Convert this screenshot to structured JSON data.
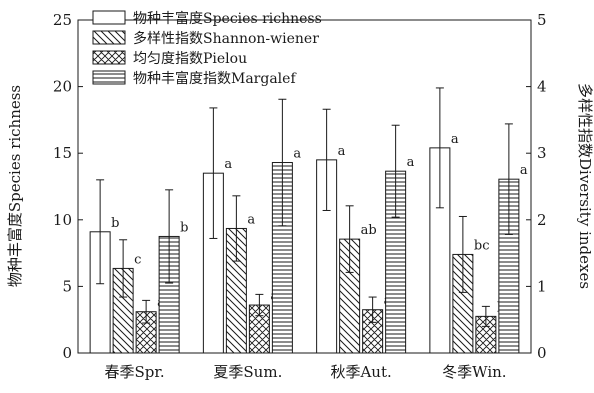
{
  "chart_data": {
    "type": "bar",
    "categories": [
      "春季Spr.",
      "夏季Sum.",
      "秋季Aut.",
      "冬季Win."
    ],
    "series": [
      {
        "name": "物种丰富度Species richness",
        "axis": "left",
        "pattern": "none",
        "values": [
          9.1,
          13.5,
          14.5,
          15.4
        ],
        "errors": [
          3.9,
          4.9,
          3.8,
          4.5
        ],
        "labels": [
          "b",
          "a",
          "a",
          "a"
        ]
      },
      {
        "name": "多样性指数Shannon-wiener",
        "axis": "right",
        "pattern": "diagonal",
        "values": [
          1.27,
          1.87,
          1.71,
          1.48
        ],
        "errors": [
          0.43,
          0.49,
          0.5,
          0.57
        ],
        "labels": [
          "c",
          "a",
          "ab",
          "bc"
        ]
      },
      {
        "name": "均匀度指数Pielou",
        "axis": "right",
        "pattern": "crosshatch",
        "values": [
          0.62,
          0.72,
          0.65,
          0.55
        ],
        "errors": [
          0.17,
          0.16,
          0.19,
          0.15
        ],
        "labels": [
          "ab",
          "a",
          "ab",
          "b"
        ]
      },
      {
        "name": "物种丰富度指数Margalef",
        "axis": "right",
        "pattern": "horizontal",
        "values": [
          1.75,
          2.86,
          2.73,
          2.61
        ],
        "errors": [
          0.7,
          0.95,
          0.69,
          0.83
        ],
        "labels": [
          "b",
          "a",
          "a",
          "a"
        ]
      }
    ],
    "ylabel": "物种丰富度Species richness",
    "ylim": [
      0,
      25
    ],
    "yticks": [
      0,
      5,
      10,
      15,
      20,
      25
    ],
    "y2label": "多样性指数Diversity indexes",
    "y2lim": [
      0,
      5
    ],
    "y2ticks": [
      0,
      1,
      2,
      3,
      4,
      5
    ],
    "legend_position": "top-left",
    "grid": false
  }
}
